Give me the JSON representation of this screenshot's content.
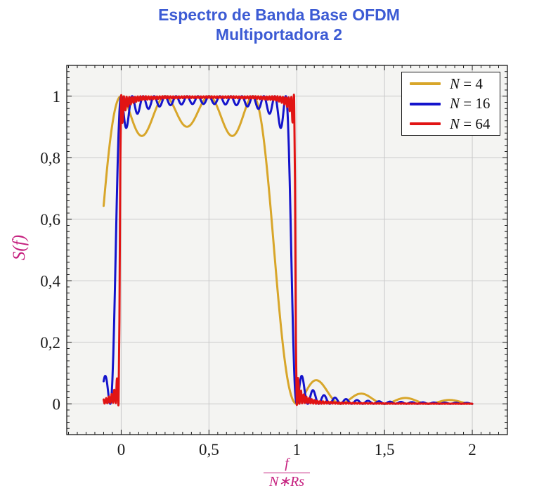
{
  "title": {
    "line1": "Espectro de Banda Base OFDM",
    "line2": "Multiportadora 2",
    "color": "#3c5bd4"
  },
  "axis": {
    "ylabel": "S(f)",
    "xlabel_numerator": "f",
    "xlabel_denominator": "N∗Rs",
    "label_color": "#c51f7e",
    "plot_bg": "#f4f4f2",
    "grid_color": "#c9c9c9",
    "tick_color": "#1a1a1a",
    "tick_label_color": "#1a1a1a",
    "xlim": [
      -0.31,
      2.2
    ],
    "ylim": [
      -0.1,
      1.1
    ],
    "xticks": [
      {
        "v": 0,
        "t": "0"
      },
      {
        "v": 0.5,
        "t": "0,5"
      },
      {
        "v": 1,
        "t": "1"
      },
      {
        "v": 1.5,
        "t": "1,5"
      },
      {
        "v": 2,
        "t": "2"
      }
    ],
    "yticks": [
      {
        "v": 0,
        "t": "0"
      },
      {
        "v": 0.2,
        "t": "0,2"
      },
      {
        "v": 0.4,
        "t": "0,4"
      },
      {
        "v": 0.6,
        "t": "0,6"
      },
      {
        "v": 0.8,
        "t": "0,8"
      },
      {
        "v": 1,
        "t": "1"
      }
    ],
    "minor_x_step": 0.05,
    "minor_y_step": 0.02
  },
  "legend": {
    "entries": [
      {
        "var": "N",
        "rest": " = 4",
        "color": "#d8a62a"
      },
      {
        "var": "N",
        "rest": " = 16",
        "color": "#1414cc"
      },
      {
        "var": "N",
        "rest": " = 64",
        "color": "#e11414"
      }
    ]
  },
  "chart_data": {
    "type": "line",
    "title": "Espectro de Banda Base OFDM Multiportadora 2",
    "xlabel": "f/(N*Rs)",
    "ylabel": "S(f)",
    "xlim": [
      -0.31,
      2.2
    ],
    "ylim": [
      -0.1,
      1.1
    ],
    "grid": "major",
    "legend_position": "top-right",
    "function": "S(x) = sum_{k=0}^{N-1} sinc^2(N*x - k), with x = f/(N*Rs), sinc(t)=sin(pi t)/(pi t)",
    "sampling": {
      "x_start": -0.1,
      "x_end": 2.0,
      "step": 0.005,
      "smooth": "catmull-rom"
    },
    "series": [
      {
        "name": "N = 4",
        "N": 4,
        "color": "#d8a62a",
        "line_width": 3
      },
      {
        "name": "N = 16",
        "N": 16,
        "color": "#1414cc",
        "line_width": 3
      },
      {
        "name": "N = 64",
        "N": 64,
        "color": "#e11414",
        "line_width": 3
      }
    ],
    "observed_features": {
      "passband": [
        0,
        1
      ],
      "peak_value": 1.0,
      "inband_ripple_min": {
        "N4": 0.87,
        "N16": 0.95,
        "N64": 0.99
      },
      "first_sidelobe_peak": {
        "N4": 0.075,
        "N16": 0.085,
        "N64": 0.02
      },
      "edge_undershoot_min": -0.045,
      "edge_overshoot_max": 1.02
    }
  }
}
